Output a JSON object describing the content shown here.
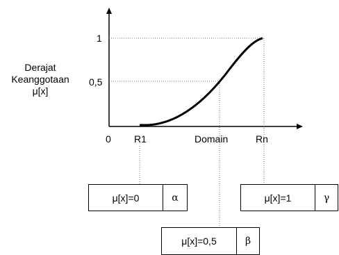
{
  "axis_label": {
    "line1": "Derajat",
    "line2": "Keanggotaan",
    "line3": "μ[x]"
  },
  "y_ticks": {
    "one": "1",
    "half": "0,5"
  },
  "x_ticks": {
    "origin": "0",
    "r1": "R1",
    "domain": "Domain",
    "rn": "Rn"
  },
  "boxes": {
    "alpha": {
      "expr": "μ[x]=0",
      "symbol": "α"
    },
    "beta": {
      "expr": "μ[x]=0,5",
      "symbol": "β"
    },
    "gamma": {
      "expr": "μ[x]=1",
      "symbol": "γ"
    }
  },
  "chart_data": {
    "type": "line",
    "x": [
      "R1",
      "Domain",
      "Rn"
    ],
    "values": [
      0,
      0.5,
      1
    ]
  }
}
